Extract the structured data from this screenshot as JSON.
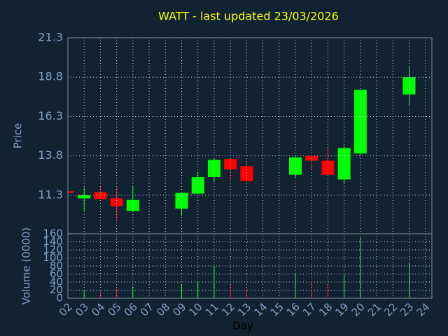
{
  "chart_data": [
    {
      "type": "candlestick",
      "title": "WATT - last updated 23/03/2026",
      "ylabel": "Price",
      "x": [
        2,
        3,
        4,
        5,
        6,
        9,
        10,
        11,
        12,
        13,
        16,
        17,
        18,
        19,
        20,
        23
      ],
      "open": [
        11.55,
        11.1,
        11.5,
        11.1,
        10.3,
        10.45,
        11.4,
        12.45,
        13.6,
        13.15,
        12.6,
        13.8,
        13.5,
        12.3,
        13.95,
        17.7
      ],
      "high": [
        11.55,
        11.8,
        11.9,
        11.8,
        11.9,
        11.45,
        12.8,
        13.6,
        13.65,
        13.4,
        13.85,
        13.85,
        14.3,
        14.45,
        18.0,
        19.45
      ],
      "low": [
        11.45,
        10.3,
        11.05,
        9.75,
        10.3,
        10.0,
        11.4,
        12.15,
        12.2,
        12.2,
        12.4,
        12.9,
        12.6,
        12.05,
        13.85,
        17.0
      ],
      "close": [
        11.45,
        11.3,
        11.05,
        10.6,
        11.0,
        11.45,
        12.45,
        13.55,
        12.95,
        12.2,
        13.7,
        13.5,
        12.6,
        14.3,
        18.0,
        18.8
      ],
      "up_color": "#00ff00",
      "down_color": "#ff0000",
      "xlim": [
        2,
        24.4
      ],
      "ylim": [
        8.85,
        21.3
      ],
      "yticks": [
        11.3,
        13.8,
        16.3,
        18.8,
        21.3
      ],
      "grid": true
    },
    {
      "type": "volume",
      "ylabel": "Volume (0000)",
      "xlabel": "Day",
      "x": [
        3,
        4,
        5,
        6,
        9,
        10,
        11,
        12,
        13,
        16,
        17,
        18,
        19,
        20,
        23
      ],
      "values": [
        20,
        15,
        25,
        30,
        35,
        42,
        80,
        38,
        28,
        62,
        40,
        35,
        58,
        153,
        87
      ],
      "colors": [
        "#00ff00",
        "#ff0000",
        "#ff0000",
        "#00ff00",
        "#00ff00",
        "#00ff00",
        "#00ff00",
        "#ff0000",
        "#ff0000",
        "#00ff00",
        "#ff0000",
        "#ff0000",
        "#00ff00",
        "#00ff00",
        "#00ff00"
      ],
      "xlim": [
        2,
        24.4
      ],
      "ylim": [
        0,
        160
      ],
      "yticks": [
        0,
        20,
        40,
        60,
        80,
        100,
        120,
        140,
        160
      ],
      "xticks": [
        {
          "value": 2,
          "label": "02"
        },
        {
          "value": 3,
          "label": "03"
        },
        {
          "value": 4,
          "label": "04"
        },
        {
          "value": 5,
          "label": "05"
        },
        {
          "value": 6,
          "label": "06"
        },
        {
          "value": 7,
          "label": "07"
        },
        {
          "value": 8,
          "label": "08"
        },
        {
          "value": 9,
          "label": "09"
        },
        {
          "value": 10,
          "label": "10"
        },
        {
          "value": 11,
          "label": "11"
        },
        {
          "value": 12,
          "label": "12"
        },
        {
          "value": 13,
          "label": "13"
        },
        {
          "value": 14,
          "label": "14"
        },
        {
          "value": 15,
          "label": "15"
        },
        {
          "value": 16,
          "label": "16"
        },
        {
          "value": 17,
          "label": "17"
        },
        {
          "value": 18,
          "label": "18"
        },
        {
          "value": 19,
          "label": "19"
        },
        {
          "value": 20,
          "label": "20"
        },
        {
          "value": 21,
          "label": "21"
        },
        {
          "value": 22,
          "label": "22"
        },
        {
          "value": 23,
          "label": "23"
        },
        {
          "value": 24,
          "label": "24"
        }
      ],
      "grid": true
    }
  ]
}
